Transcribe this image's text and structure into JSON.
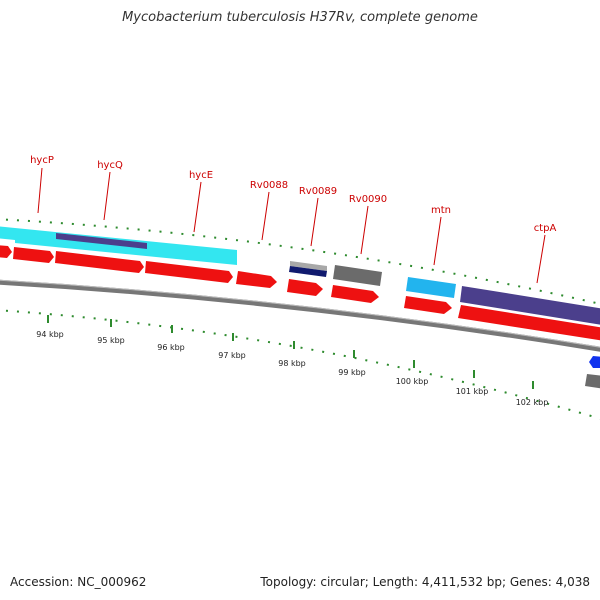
{
  "title": "Mycobacterium tuberculosis H37Rv, complete genome",
  "footer": {
    "accession": "Accession: NC_000962",
    "summary": "Topology: circular; Length: 4,411,532 bp; Genes: 4,038"
  },
  "colors": {
    "gene_label": "#cc0000",
    "cds": "#ee1111",
    "cyan": "#33e6f0",
    "purple": "#4b3f8c",
    "gray": "#6b6b6b",
    "light_blue": "#22b4ee",
    "navy": "#101a6e",
    "tick": "#2e8b2e",
    "backbone": "#888888"
  },
  "gene_labels": [
    "hycP",
    "hycQ",
    "hycE",
    "Rv0088",
    "Rv0089",
    "Rv0090",
    "mtn",
    "ctpA"
  ],
  "kbp_labels": [
    "94 kbp",
    "95 kbp",
    "96 kbp",
    "97 kbp",
    "98 kbp",
    "99 kbp",
    "100 kbp",
    "101 kbp",
    "102 kbp"
  ]
}
